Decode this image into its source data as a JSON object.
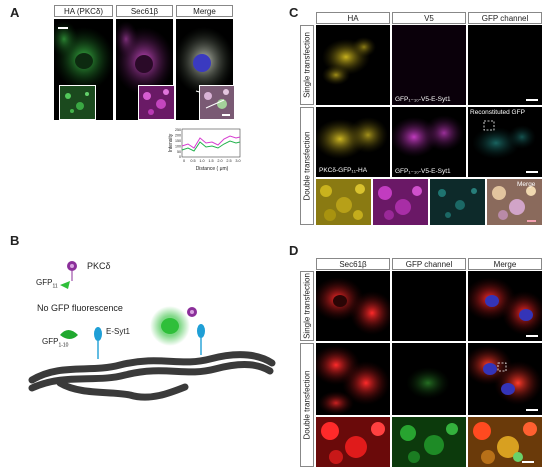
{
  "panels": {
    "A": {
      "label": "A",
      "headers": [
        "HA (PKCδ)",
        "Sec61β",
        "Merge"
      ],
      "plot": {
        "ylabel": "Intensity",
        "xlabel": "Distance ( μm)",
        "yticks": [
          "250",
          "200",
          "150",
          "100",
          "50",
          "0"
        ],
        "xticks": [
          "0",
          "0.5",
          "1.0",
          "1.5",
          "2.0",
          "2.5",
          "3.0"
        ],
        "series_colors": [
          "#d63cd0",
          "#22b24c"
        ]
      }
    },
    "B": {
      "label": "B",
      "pkc_label": "PKCδ",
      "gfp11_label": "GFP",
      "gfp11_sub": "11",
      "no_gfp": "No GFP fluorescence",
      "gfp110_label": "GFP",
      "gfp110_sub": "1-10",
      "esyt_label": "E-Syt1"
    },
    "C": {
      "label": "C",
      "headers": [
        "HA",
        "V5",
        "GFP channel"
      ],
      "rows": [
        "Single transfection",
        "Double transfection"
      ],
      "cap_single": "GFP₁₋₁₀-V5-E-Syt1",
      "cap_recon": "Reconstituted GFP",
      "cap_pkc": "PKCδ-GFP₁₁-HA",
      "cap_double": "GFP₁₋₁₀-V5-E-Syt1",
      "cap_merge": "Merge"
    },
    "D": {
      "label": "D",
      "headers": [
        "Sec61β",
        "GFP channel",
        "Merge"
      ],
      "rows": [
        "Single transfection",
        "Double transfection"
      ]
    }
  },
  "colors": {
    "green": "#2fbf3a",
    "magenta": "#c23cc0",
    "yellow": "#c9b21d",
    "red": "#e01b1b",
    "cyan": "#2aa6a0"
  }
}
